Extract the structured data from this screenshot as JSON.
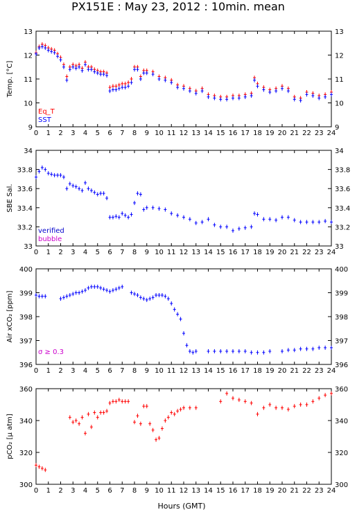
{
  "title": "PX151E : May 23, 2012 : 10min. mean",
  "xlabel": "Hours (GMT)",
  "chart_data": [
    {
      "type": "scatter",
      "ylabel": "Temp. [°C]",
      "ylim": [
        9,
        13
      ],
      "yticks": [
        9,
        10,
        11,
        12,
        13
      ],
      "xlim": [
        0,
        24
      ],
      "legend": [
        "Eq_T",
        "SST"
      ],
      "series": [
        {
          "name": "Eq_T",
          "color": "#ff0000",
          "x": [
            0.0,
            0.25,
            0.5,
            0.75,
            1.0,
            1.25,
            1.5,
            1.75,
            2.0,
            2.25,
            2.5,
            2.75,
            3.0,
            3.25,
            3.5,
            3.75,
            4.0,
            4.25,
            4.5,
            4.75,
            5.0,
            5.25,
            5.5,
            5.75,
            6.0,
            6.25,
            6.5,
            6.75,
            7.0,
            7.25,
            7.5,
            7.75,
            8.0,
            8.25,
            8.5,
            8.75,
            9.0,
            9.5,
            10.0,
            10.5,
            11.0,
            11.5,
            12.0,
            12.5,
            13.0,
            13.5,
            14.0,
            14.5,
            15.0,
            15.5,
            16.0,
            16.5,
            17.0,
            17.5,
            17.75,
            18.0,
            18.5,
            19.0,
            19.5,
            20.0,
            20.5,
            21.0,
            21.5,
            22.0,
            22.5,
            23.0,
            23.5,
            24.0
          ],
          "y": [
            12.1,
            12.35,
            12.45,
            12.4,
            12.3,
            12.25,
            12.2,
            12.05,
            11.9,
            11.6,
            11.1,
            11.5,
            11.6,
            11.55,
            11.6,
            11.45,
            11.7,
            11.5,
            11.5,
            11.4,
            11.35,
            11.3,
            11.3,
            11.25,
            10.65,
            10.7,
            10.7,
            10.75,
            10.8,
            10.8,
            10.85,
            11.0,
            11.5,
            11.5,
            11.1,
            11.35,
            11.35,
            11.3,
            11.1,
            11.05,
            10.95,
            10.75,
            10.7,
            10.6,
            10.5,
            10.6,
            10.35,
            10.3,
            10.25,
            10.25,
            10.3,
            10.3,
            10.35,
            10.4,
            11.05,
            10.8,
            10.65,
            10.55,
            10.6,
            10.7,
            10.6,
            10.25,
            10.2,
            10.45,
            10.4,
            10.3,
            10.35,
            10.45
          ]
        },
        {
          "name": "SST",
          "color": "#0000ff",
          "x": [
            0.0,
            0.25,
            0.5,
            0.75,
            1.0,
            1.25,
            1.5,
            1.75,
            2.0,
            2.25,
            2.5,
            2.75,
            3.0,
            3.25,
            3.5,
            3.75,
            4.0,
            4.25,
            4.5,
            4.75,
            5.0,
            5.25,
            5.5,
            5.75,
            6.0,
            6.25,
            6.5,
            6.75,
            7.0,
            7.25,
            7.5,
            7.75,
            8.0,
            8.25,
            8.5,
            8.75,
            9.0,
            9.5,
            10.0,
            10.5,
            11.0,
            11.5,
            12.0,
            12.5,
            13.0,
            13.5,
            14.0,
            14.5,
            15.0,
            15.5,
            16.0,
            16.5,
            17.0,
            17.5,
            17.75,
            18.0,
            18.5,
            19.0,
            19.5,
            20.0,
            20.5,
            21.0,
            21.5,
            22.0,
            22.5,
            23.0,
            23.5,
            24.0
          ],
          "y": [
            12.05,
            12.3,
            12.35,
            12.3,
            12.2,
            12.15,
            12.1,
            11.95,
            11.8,
            11.5,
            10.95,
            11.4,
            11.5,
            11.45,
            11.5,
            11.35,
            11.6,
            11.4,
            11.4,
            11.3,
            11.25,
            11.2,
            11.2,
            11.15,
            10.5,
            10.55,
            10.55,
            10.6,
            10.65,
            10.65,
            10.7,
            10.85,
            11.4,
            11.4,
            11.0,
            11.25,
            11.25,
            11.2,
            11.0,
            10.95,
            10.85,
            10.65,
            10.6,
            10.5,
            10.4,
            10.5,
            10.25,
            10.2,
            10.15,
            10.15,
            10.2,
            10.2,
            10.25,
            10.3,
            10.95,
            10.7,
            10.55,
            10.45,
            10.5,
            10.6,
            10.5,
            10.15,
            10.1,
            10.35,
            10.3,
            10.2,
            10.25,
            10.35
          ]
        }
      ]
    },
    {
      "type": "scatter",
      "ylabel": "SBE Sal.",
      "ylim": [
        33,
        34
      ],
      "yticks": [
        33,
        33.2,
        33.4,
        33.6,
        33.8,
        34
      ],
      "xlim": [
        0,
        24
      ],
      "legend": [
        "verified",
        "bubble"
      ],
      "series": [
        {
          "name": "verified",
          "color": "#0000ff",
          "x": [
            0.0,
            0.25,
            0.5,
            0.75,
            1.0,
            1.25,
            1.5,
            1.75,
            2.0,
            2.25,
            2.5,
            2.75,
            3.0,
            3.25,
            3.5,
            3.75,
            4.0,
            4.25,
            4.5,
            4.75,
            5.0,
            5.25,
            5.5,
            5.75,
            6.0,
            6.25,
            6.5,
            6.75,
            7.0,
            7.25,
            7.5,
            7.75,
            8.0,
            8.25,
            8.5,
            8.75,
            9.0,
            9.5,
            10.0,
            10.5,
            11.0,
            11.5,
            12.0,
            12.5,
            13.0,
            13.5,
            14.0,
            14.5,
            15.0,
            15.5,
            16.0,
            16.5,
            17.0,
            17.5,
            17.75,
            18.0,
            18.5,
            19.0,
            19.5,
            20.0,
            20.5,
            21.0,
            21.5,
            22.0,
            22.5,
            23.0,
            23.5,
            24.0
          ],
          "y": [
            33.72,
            33.78,
            33.82,
            33.8,
            33.76,
            33.75,
            33.74,
            33.74,
            33.74,
            33.72,
            33.6,
            33.65,
            33.63,
            33.62,
            33.6,
            33.58,
            33.66,
            33.6,
            33.58,
            33.56,
            33.54,
            33.55,
            33.55,
            33.5,
            33.3,
            33.3,
            33.31,
            33.3,
            33.34,
            33.32,
            33.3,
            33.33,
            33.45,
            33.55,
            33.54,
            33.38,
            33.4,
            33.4,
            33.39,
            33.38,
            33.34,
            33.32,
            33.3,
            33.28,
            33.24,
            33.25,
            33.28,
            33.22,
            33.2,
            33.2,
            33.16,
            33.18,
            33.19,
            33.2,
            33.34,
            33.33,
            33.28,
            33.28,
            33.27,
            33.3,
            33.3,
            33.27,
            33.25,
            33.25,
            33.25,
            33.25,
            33.26,
            33.25
          ]
        }
      ]
    },
    {
      "type": "scatter",
      "ylabel": "Air xCO₂ [ppm]",
      "ylim": [
        396,
        400
      ],
      "yticks": [
        396,
        397,
        398,
        399,
        400
      ],
      "xlim": [
        0,
        24
      ],
      "annotation": "σ ≥ 0.3",
      "series": [
        {
          "name": "",
          "color": "#0000ff",
          "x": [
            0.0,
            0.25,
            0.5,
            0.75,
            2.0,
            2.25,
            2.5,
            2.75,
            3.0,
            3.25,
            3.5,
            3.75,
            4.0,
            4.25,
            4.5,
            4.75,
            5.0,
            5.25,
            5.5,
            5.75,
            6.0,
            6.25,
            6.5,
            6.75,
            7.0,
            7.75,
            8.0,
            8.25,
            8.5,
            8.75,
            9.0,
            9.25,
            9.5,
            9.75,
            10.0,
            10.25,
            10.5,
            10.75,
            11.0,
            11.25,
            11.5,
            11.75,
            12.0,
            12.25,
            12.5,
            12.75,
            13.0,
            14.0,
            14.5,
            15.0,
            15.5,
            16.0,
            16.5,
            17.0,
            17.5,
            18.0,
            18.5,
            19.0,
            20.0,
            20.5,
            21.0,
            21.5,
            22.0,
            22.5,
            23.0,
            23.5,
            24.0
          ],
          "y": [
            398.9,
            398.85,
            398.85,
            398.85,
            398.75,
            398.8,
            398.85,
            398.9,
            398.95,
            399.0,
            399.0,
            399.05,
            399.1,
            399.2,
            399.25,
            399.25,
            399.25,
            399.2,
            399.15,
            399.1,
            399.05,
            399.1,
            399.15,
            399.2,
            399.25,
            399.0,
            398.95,
            398.9,
            398.8,
            398.75,
            398.7,
            398.75,
            398.8,
            398.9,
            398.9,
            398.9,
            398.85,
            398.75,
            398.55,
            398.3,
            398.1,
            397.9,
            397.3,
            396.8,
            396.55,
            396.5,
            396.55,
            396.55,
            396.55,
            396.55,
            396.55,
            396.55,
            396.55,
            396.55,
            396.5,
            396.5,
            396.5,
            396.55,
            396.55,
            396.6,
            396.6,
            396.65,
            396.65,
            396.65,
            396.7,
            396.7,
            396.7
          ]
        }
      ]
    },
    {
      "type": "scatter",
      "ylabel": "pCO₂ [µ atm]",
      "ylim": [
        300,
        360
      ],
      "yticks": [
        300,
        320,
        340,
        360
      ],
      "xlim": [
        0,
        24
      ],
      "series": [
        {
          "name": "",
          "color": "#ff0000",
          "x": [
            0.0,
            0.25,
            0.5,
            0.75,
            2.75,
            3.0,
            3.25,
            3.5,
            3.75,
            4.0,
            4.25,
            4.5,
            4.75,
            5.0,
            5.25,
            5.5,
            5.75,
            6.0,
            6.25,
            6.5,
            6.75,
            7.0,
            7.25,
            7.5,
            8.0,
            8.25,
            8.5,
            8.75,
            9.0,
            9.25,
            9.5,
            9.75,
            10.0,
            10.25,
            10.5,
            10.75,
            11.0,
            11.25,
            11.5,
            11.75,
            12.0,
            12.5,
            13.0,
            15.0,
            15.5,
            16.0,
            16.5,
            17.0,
            17.5,
            18.0,
            18.5,
            19.0,
            19.5,
            20.0,
            20.5,
            21.0,
            21.5,
            22.0,
            22.5,
            23.0,
            23.5,
            24.0
          ],
          "y": [
            312,
            311,
            310,
            309,
            342,
            339,
            340,
            338,
            342,
            332,
            344,
            336,
            345,
            342,
            345,
            345,
            346,
            351,
            352,
            352,
            353,
            352,
            352,
            352,
            339,
            343,
            338,
            349,
            349,
            338,
            334,
            328,
            329,
            335,
            340,
            342,
            345,
            344,
            346,
            347,
            348,
            348,
            348,
            352,
            357,
            354,
            353,
            352,
            351,
            344,
            348,
            350,
            348,
            348,
            347,
            349,
            350,
            350,
            352,
            354,
            356,
            357
          ]
        }
      ]
    }
  ]
}
